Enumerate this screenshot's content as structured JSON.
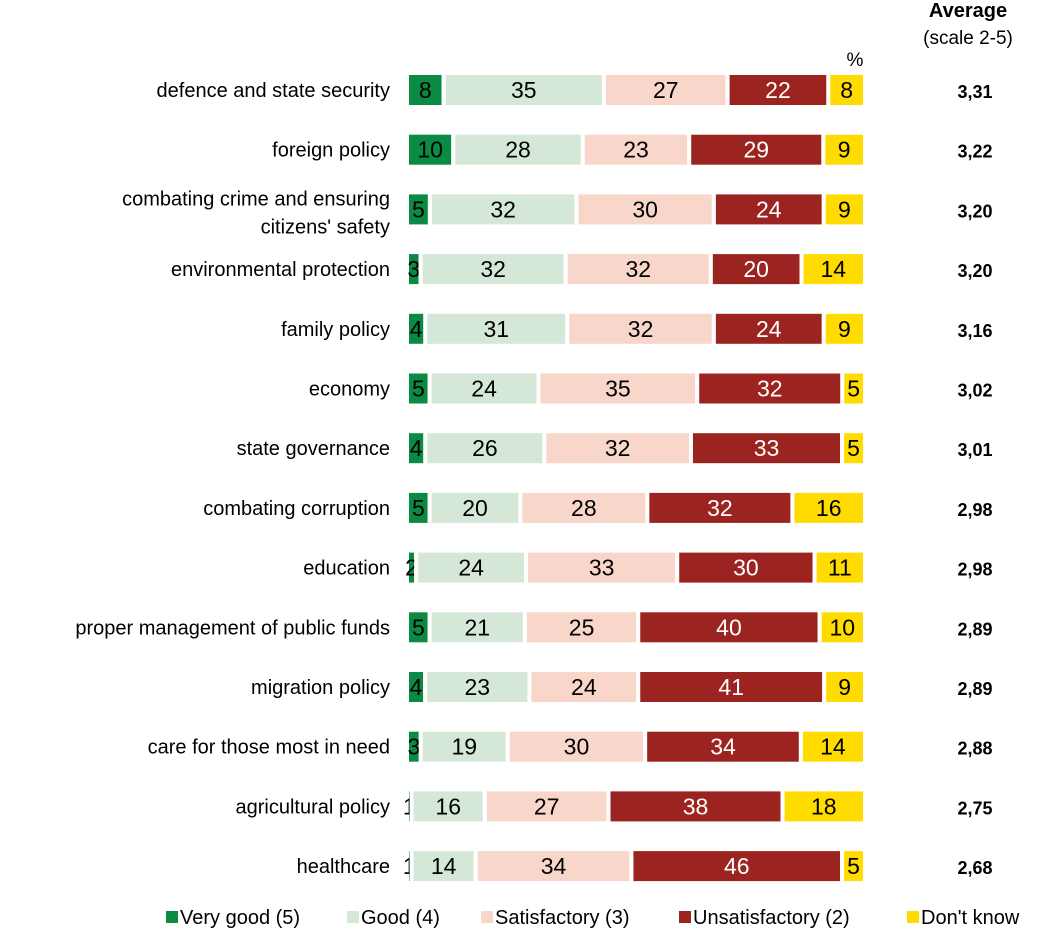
{
  "chart_data": {
    "type": "bar",
    "orientation": "horizontal",
    "stacked": true,
    "unit_label": "%",
    "average_header": "Average",
    "average_subheader": "(scale 2-5)",
    "legend_position": "bottom",
    "grid": false,
    "categories": [
      "defence and state security",
      "foreign policy",
      "combating crime and ensuring citizens' safety",
      "environmental protection",
      "family policy",
      "economy",
      "state governance",
      "combating corruption",
      "education",
      "proper management of public funds",
      "migration policy",
      "care for those most in need",
      "agricultural policy",
      "healthcare"
    ],
    "category_lines": [
      [
        "defence and state security"
      ],
      [
        "foreign policy"
      ],
      [
        "combating crime and ensuring",
        "citizens' safety"
      ],
      [
        "environmental protection"
      ],
      [
        "family policy"
      ],
      [
        "economy"
      ],
      [
        "state governance"
      ],
      [
        "combating corruption"
      ],
      [
        "education"
      ],
      [
        "proper management of public funds"
      ],
      [
        "migration policy"
      ],
      [
        "care for those most in need"
      ],
      [
        "agricultural policy"
      ],
      [
        "healthcare"
      ]
    ],
    "series": [
      {
        "name": "Very good (5)",
        "color": "#0b8a43",
        "text_color": "#000000",
        "values": [
          8,
          10,
          5,
          3,
          4,
          5,
          4,
          5,
          2,
          5,
          4,
          3,
          1,
          1
        ]
      },
      {
        "name": "Good (4)",
        "color": "#d5e8d8",
        "text_color": "#000000",
        "values": [
          35,
          28,
          32,
          32,
          31,
          24,
          26,
          20,
          24,
          21,
          23,
          19,
          16,
          14
        ]
      },
      {
        "name": "Satisfactory (3)",
        "color": "#f8d6ca",
        "text_color": "#000000",
        "values": [
          27,
          23,
          30,
          32,
          32,
          35,
          32,
          28,
          33,
          25,
          24,
          30,
          27,
          34
        ]
      },
      {
        "name": "Unsatisfactory (2)",
        "color": "#9c2420",
        "text_color": "#ffffff",
        "values": [
          22,
          29,
          24,
          20,
          24,
          32,
          33,
          32,
          30,
          40,
          41,
          34,
          38,
          46
        ]
      },
      {
        "name": "Don't know",
        "color": "#ffdb00",
        "text_color": "#000000",
        "values": [
          8,
          9,
          9,
          14,
          9,
          5,
          5,
          16,
          11,
          10,
          9,
          14,
          18,
          5
        ]
      }
    ],
    "averages": [
      "3,31",
      "3,22",
      "3,20",
      "3,20",
      "3,16",
      "3,02",
      "3,01",
      "2,98",
      "2,98",
      "2,89",
      "2,89",
      "2,88",
      "2,75",
      "2,68"
    ]
  }
}
